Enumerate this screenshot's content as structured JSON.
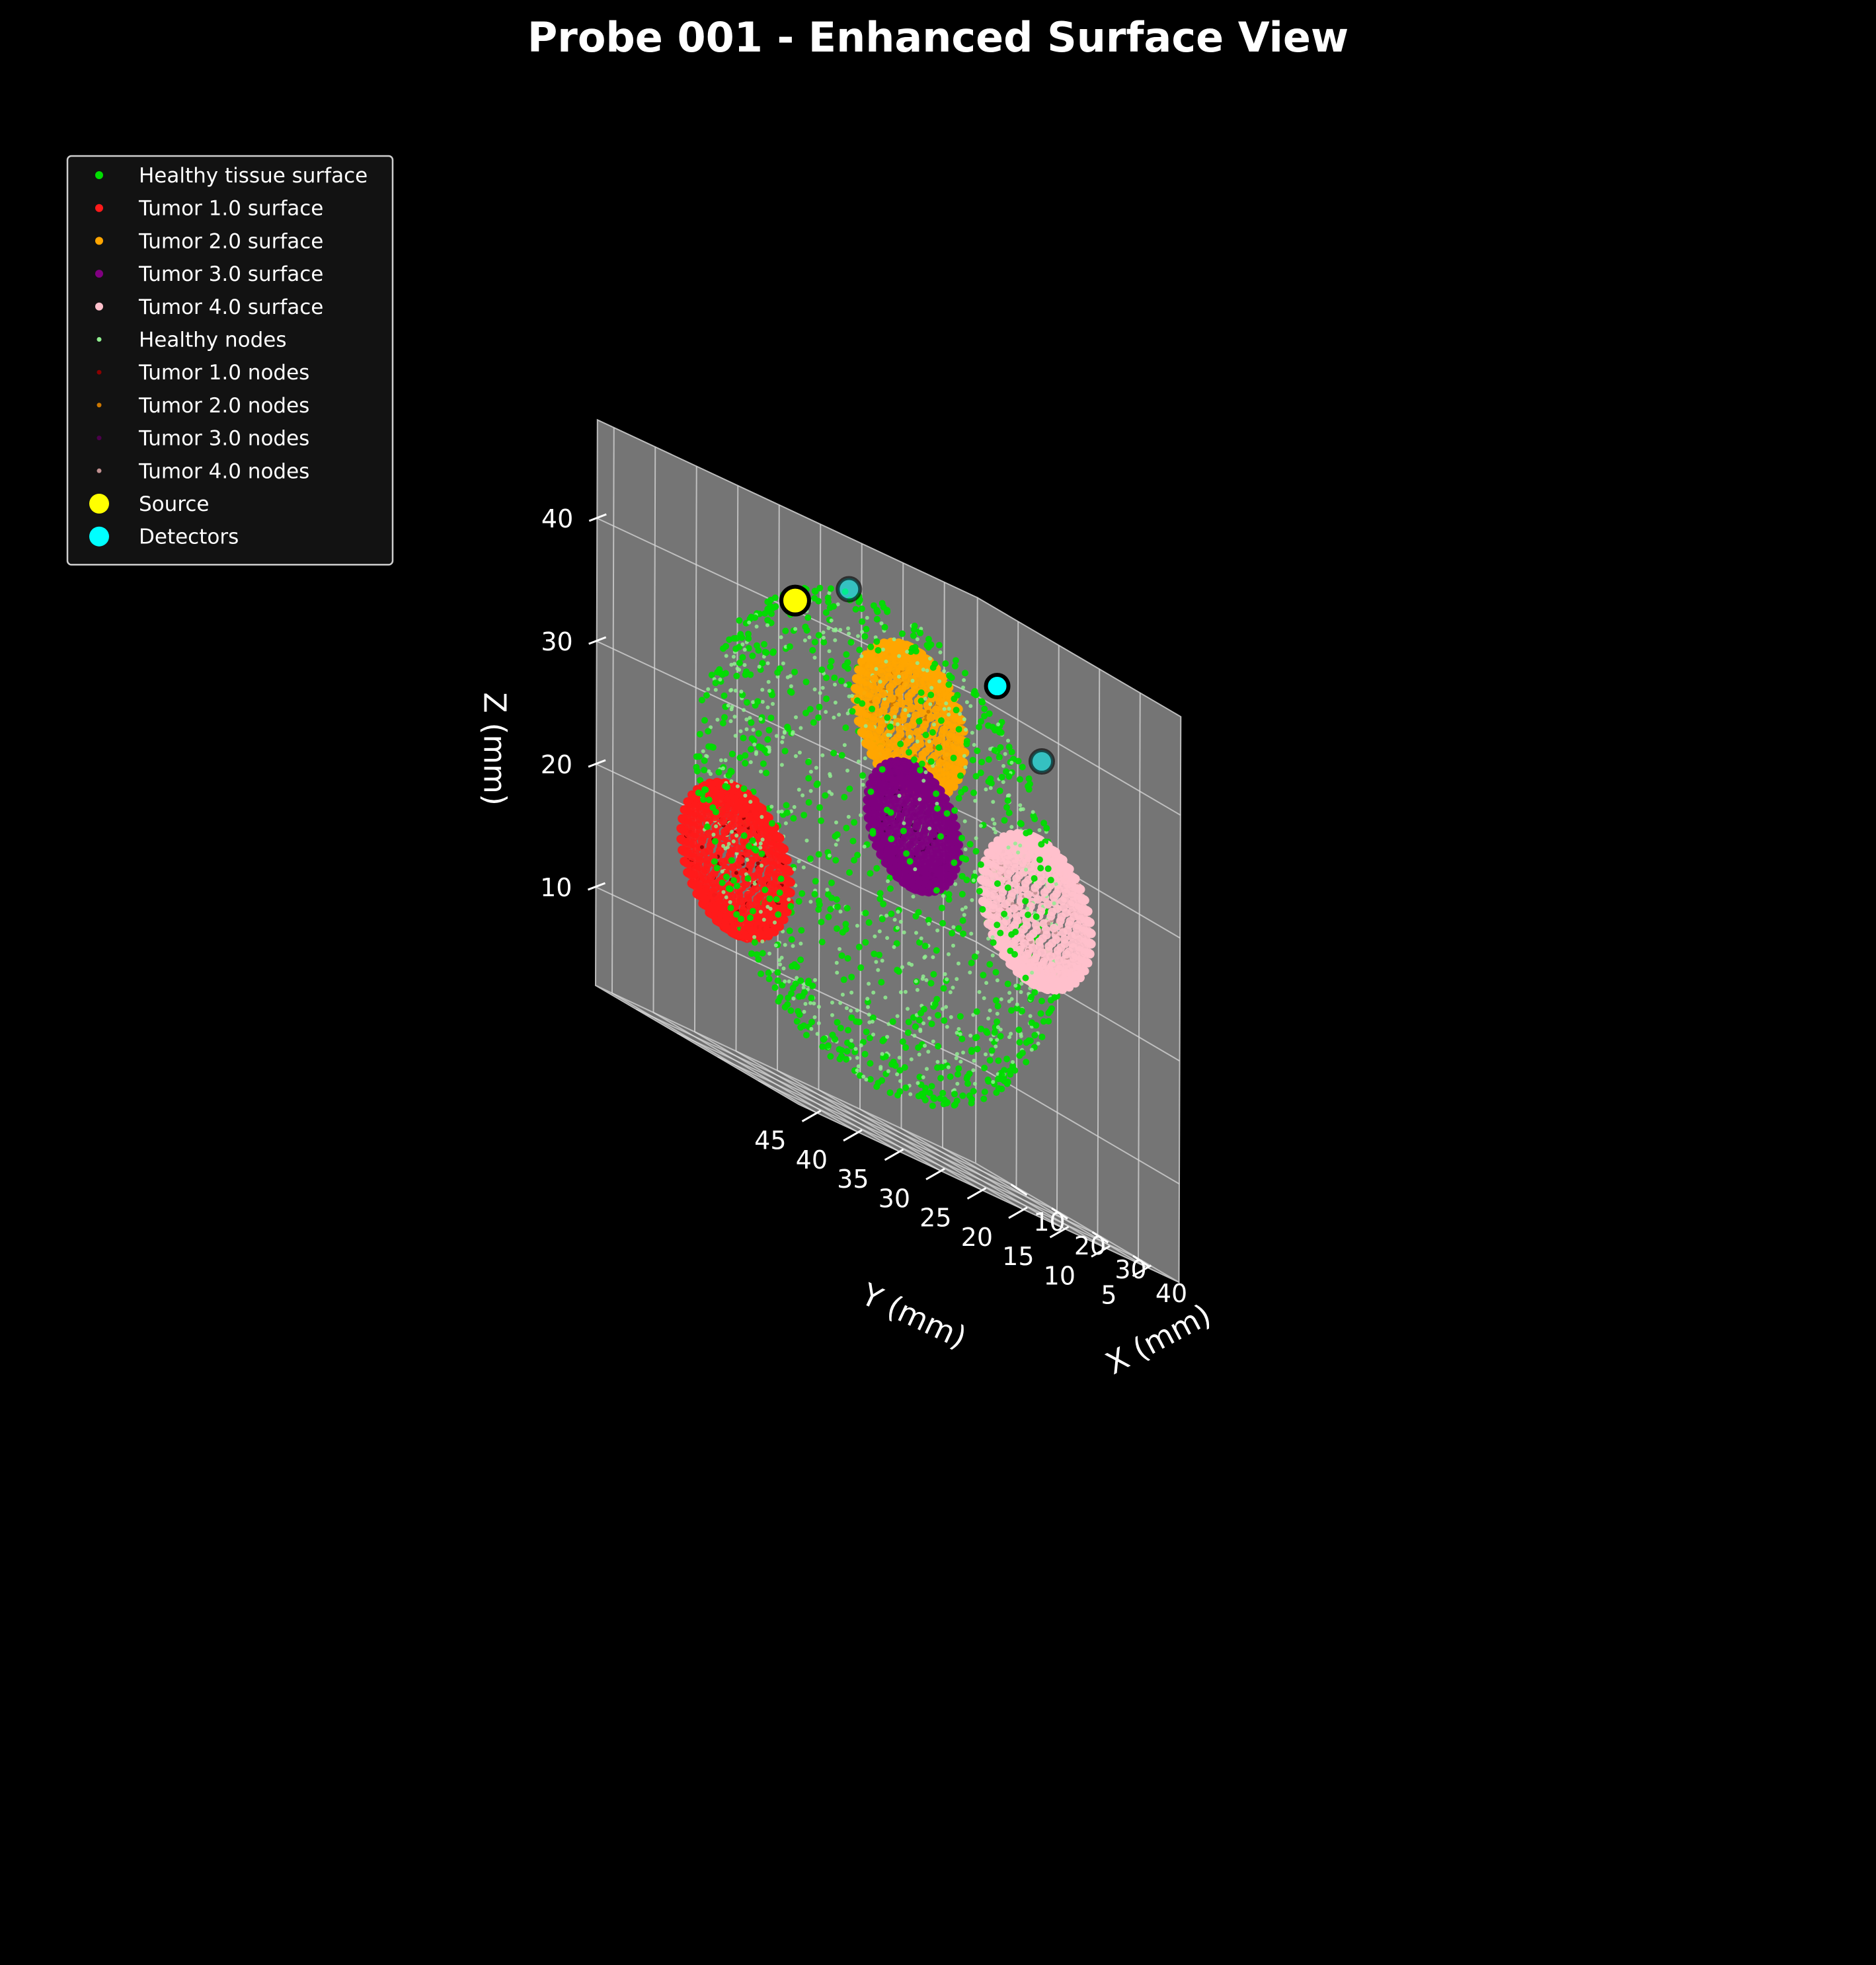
{
  "chart_data": {
    "type": "scatter3d",
    "title": "Probe 001 - Enhanced Surface View",
    "xlabel": "X (mm)",
    "ylabel": "Y (mm)",
    "zlabel": "Z (mm)",
    "xlim": [
      0,
      50
    ],
    "ylim": [
      1,
      47
    ],
    "zlim": [
      2,
      48
    ],
    "xticks": [
      10,
      20,
      30,
      40
    ],
    "yticks": [
      5,
      10,
      15,
      20,
      25,
      30,
      35,
      40,
      45
    ],
    "zticks": [
      10,
      20,
      30,
      40
    ],
    "grid": true,
    "legend_position": "upper-left",
    "background": "#000000",
    "pane_color": "#7a7a7a",
    "tissue_sphere": {
      "center": [
        25,
        25,
        25
      ],
      "radius": 20
    },
    "tumors": [
      {
        "label": "Tumor 1.0",
        "center": [
          14,
          37,
          18
        ],
        "radius": 6
      },
      {
        "label": "Tumor 2.0",
        "center": [
          14,
          16,
          36
        ],
        "radius": 6
      },
      {
        "label": "Tumor 3.0",
        "center": [
          27,
          22,
          28
        ],
        "radius": 5
      },
      {
        "label": "Tumor 4.0",
        "center": [
          33,
          10,
          26
        ],
        "radius": 6
      }
    ],
    "source": {
      "label": "Source",
      "x": 4,
      "y": 25,
      "z": 41,
      "color": "#ffff00"
    },
    "detectors": {
      "label": "Detectors",
      "color": "#00ffff",
      "points": [
        {
          "x": 5,
          "y": 19,
          "z": 44
        },
        {
          "x": 11,
          "y": 4,
          "z": 42
        },
        {
          "x": 22,
          "y": 4,
          "z": 38
        }
      ]
    },
    "series": [
      {
        "name": "Healthy tissue surface",
        "color": "#00dd00",
        "kind": "surface"
      },
      {
        "name": "Tumor 1.0 surface",
        "color": "#ff1a1a",
        "kind": "surface"
      },
      {
        "name": "Tumor 2.0 surface",
        "color": "#ffa500",
        "kind": "surface"
      },
      {
        "name": "Tumor 3.0 surface",
        "color": "#800080",
        "kind": "surface"
      },
      {
        "name": "Tumor 4.0 surface",
        "color": "#ffc0cb",
        "kind": "surface"
      },
      {
        "name": "Healthy nodes",
        "color": "#90ee90",
        "kind": "nodes"
      },
      {
        "name": "Tumor 1.0 nodes",
        "color": "#8b0000",
        "kind": "nodes"
      },
      {
        "name": "Tumor 2.0 nodes",
        "color": "#cc7700",
        "kind": "nodes"
      },
      {
        "name": "Tumor 3.0 nodes",
        "color": "#4b004b",
        "kind": "nodes"
      },
      {
        "name": "Tumor 4.0 nodes",
        "color": "#c09090",
        "kind": "nodes"
      },
      {
        "name": "Source",
        "color": "#ffff00",
        "kind": "marker"
      },
      {
        "name": "Detectors",
        "color": "#00ffff",
        "kind": "marker"
      }
    ]
  }
}
